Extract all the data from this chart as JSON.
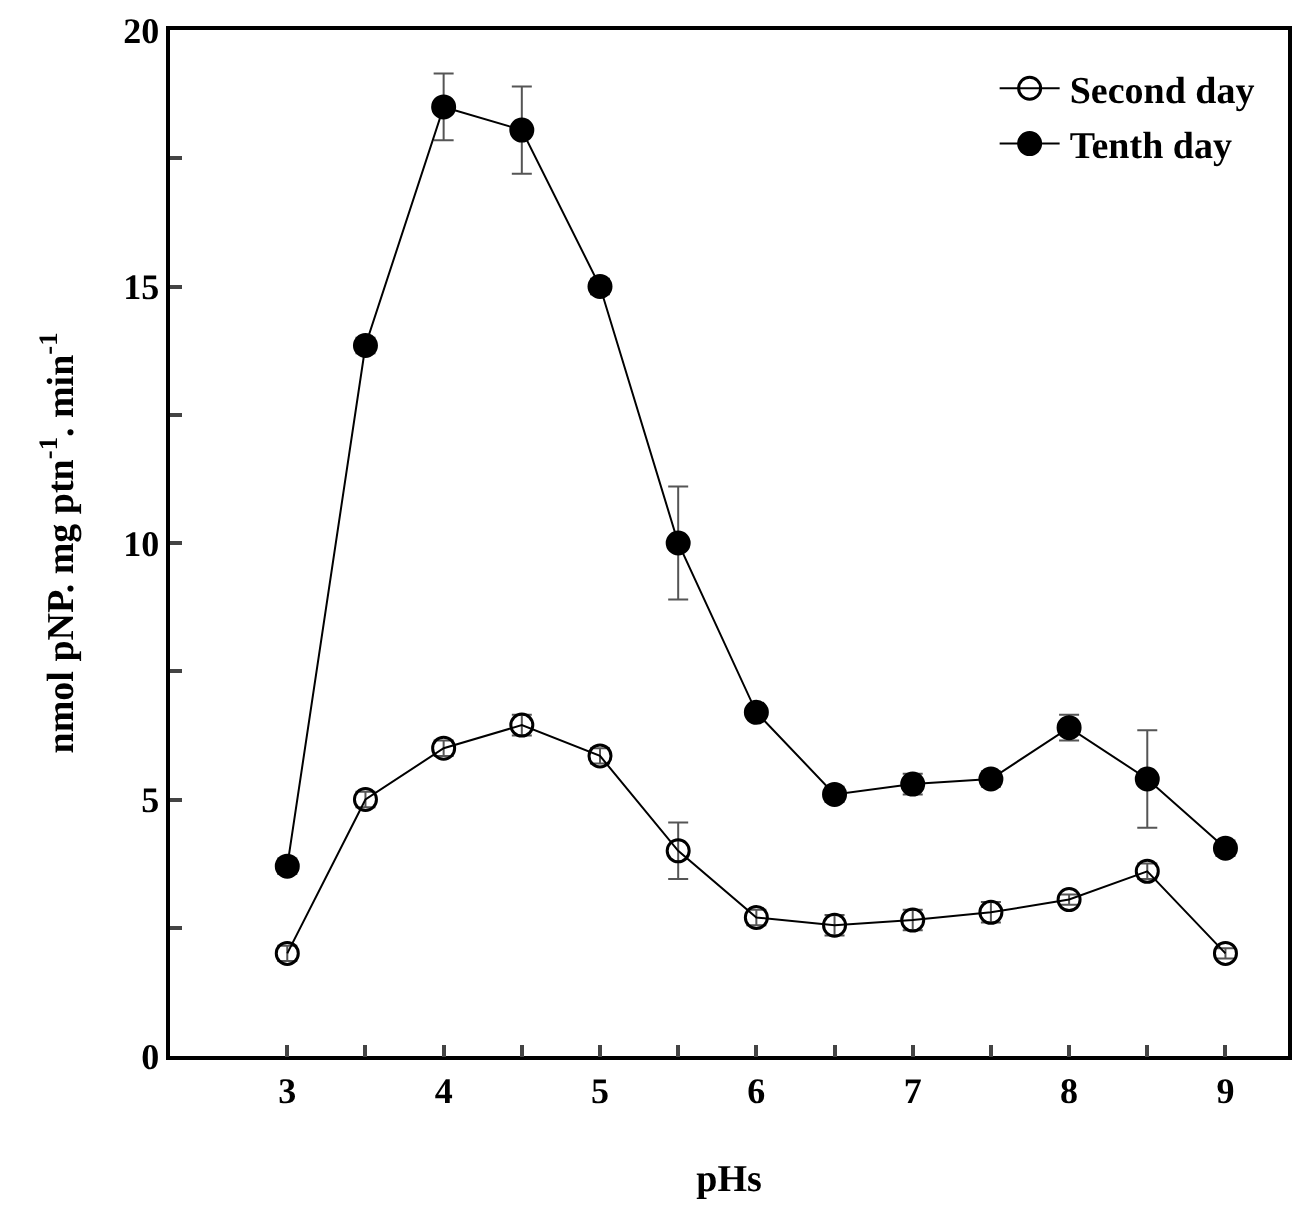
{
  "chart_data": {
    "type": "line",
    "xlabel": "pHs",
    "ylabel": "nmol pNP. mg ptn$^{-1}$. min$^{-1}$",
    "x": [
      3,
      3.5,
      4,
      4.5,
      5,
      5.5,
      6,
      6.5,
      7,
      7.5,
      8,
      8.5,
      9
    ],
    "series": [
      {
        "name": "Second day",
        "color": "#000000",
        "marker": "circle-open",
        "values": [
          2.0,
          5.0,
          6.0,
          6.45,
          5.85,
          4.0,
          2.7,
          2.55,
          2.65,
          2.8,
          3.05,
          3.6,
          2.0
        ],
        "errors": [
          0.15,
          0.15,
          0.15,
          0.2,
          0.15,
          0.55,
          0.15,
          0.2,
          0.2,
          0.2,
          0.1,
          0.15,
          0.1
        ]
      },
      {
        "name": "Tenth day",
        "color": "#000000",
        "marker": "circle",
        "values": [
          3.7,
          13.85,
          18.5,
          18.05,
          15.0,
          10.0,
          6.7,
          5.1,
          5.3,
          5.4,
          6.4,
          5.4,
          4.05
        ],
        "errors": [
          0.15,
          0.15,
          0.65,
          0.85,
          0.15,
          1.1,
          0.1,
          0.15,
          0.2,
          0.15,
          0.25,
          0.95,
          0.15
        ]
      }
    ],
    "xlim": [
      2.25,
      9.4
    ],
    "ylim": [
      0,
      20
    ],
    "xticks": [
      3,
      {
        "value": 3.5,
        "label": null
      },
      4,
      {
        "value": 4.5,
        "label": null
      },
      5,
      {
        "value": 5.5,
        "label": null
      },
      6,
      {
        "value": 6.5,
        "label": null
      },
      7,
      {
        "value": 7.5,
        "label": null
      },
      8,
      {
        "value": 8.5,
        "label": null
      },
      9
    ],
    "yticks": [
      0,
      {
        "value": 2.5,
        "label": null
      },
      5,
      {
        "value": 7.5,
        "label": null
      },
      10,
      {
        "value": 12.5,
        "label": null
      },
      15,
      {
        "value": 17.5,
        "label": null
      },
      20
    ],
    "grid": false,
    "legend": "top right",
    "line_style": "solid"
  }
}
